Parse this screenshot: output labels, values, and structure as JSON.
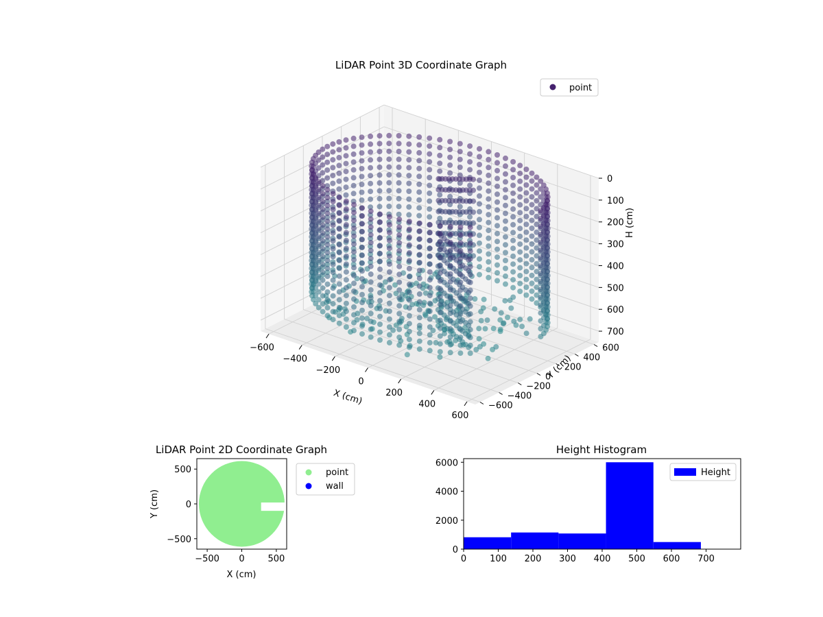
{
  "colors": {
    "scatter3d_dark": "#45226e",
    "scatter3d_light": "#2a8a8e",
    "point2d": "#90ee90",
    "wall2d": "#0000ff",
    "hist": "#0000ff",
    "grid": "#d0d0d0",
    "pane_fill": "#f3f3f3"
  },
  "chart_data": [
    {
      "type": "scatter",
      "projection": "3d",
      "title": "LiDAR Point 3D Coordinate Graph",
      "xlabel": "X (cm)",
      "ylabel": "Y (cm)",
      "zlabel": "H (cm)",
      "xlim": [
        -650,
        650
      ],
      "ylim": [
        -650,
        650
      ],
      "zlim": [
        0,
        750
      ],
      "z_inverted": true,
      "x_ticks": [
        "−600",
        "−400",
        "−200",
        "0",
        "200",
        "400",
        "600"
      ],
      "y_ticks": [
        "−600",
        "−400",
        "−200",
        "0",
        "200",
        "400",
        "600"
      ],
      "z_ticks": [
        "0",
        "100",
        "200",
        "300",
        "400",
        "500",
        "600",
        "700"
      ],
      "legend": {
        "position": "top-right",
        "entries": [
          "point"
        ]
      },
      "grid": true,
      "cylinder": {
        "radius": 620,
        "gap_angle_deg": [
          -40,
          10
        ],
        "h_min": 40,
        "h_max": 620
      },
      "inner_walls": [
        {
          "x": [
            -50,
            80
          ],
          "y": [
            180,
            320
          ],
          "h": [
            80,
            460
          ]
        },
        {
          "x": [
            120,
            420
          ],
          "y": [
            -120,
            -320
          ],
          "h": [
            220,
            640
          ]
        }
      ]
    },
    {
      "type": "scatter",
      "title": "LiDAR Point 2D Coordinate Graph",
      "xlabel": "X (cm)",
      "ylabel": "Y (cm)",
      "xlim": [
        -650,
        650
      ],
      "ylim": [
        -650,
        650
      ],
      "x_ticks": [
        "−500",
        "0",
        "500"
      ],
      "y_ticks": [
        "−500",
        "0",
        "500"
      ],
      "legend": {
        "position": "outside-right",
        "entries": [
          "point",
          "wall"
        ]
      },
      "series": [
        {
          "name": "point",
          "shape": "disk",
          "radius": 620,
          "notch": {
            "x": [
              280,
              650
            ],
            "y": [
              -100,
              20
            ]
          }
        },
        {
          "name": "wall",
          "points": []
        }
      ]
    },
    {
      "type": "bar",
      "title": "Height Histogram",
      "xlabel": "",
      "ylabel": "",
      "xlim": [
        0,
        800
      ],
      "ylim": [
        0,
        6250
      ],
      "x_ticks": [
        "0",
        "100",
        "200",
        "300",
        "400",
        "500",
        "600",
        "700"
      ],
      "y_ticks": [
        "0",
        "2000",
        "4000",
        "6000"
      ],
      "legend": {
        "position": "top-right",
        "entries": [
          "Height"
        ]
      },
      "bin_edges": [
        0,
        137,
        274,
        411,
        548,
        685,
        822
      ],
      "values": [
        820,
        1150,
        1080,
        6000,
        490,
        0
      ]
    }
  ]
}
